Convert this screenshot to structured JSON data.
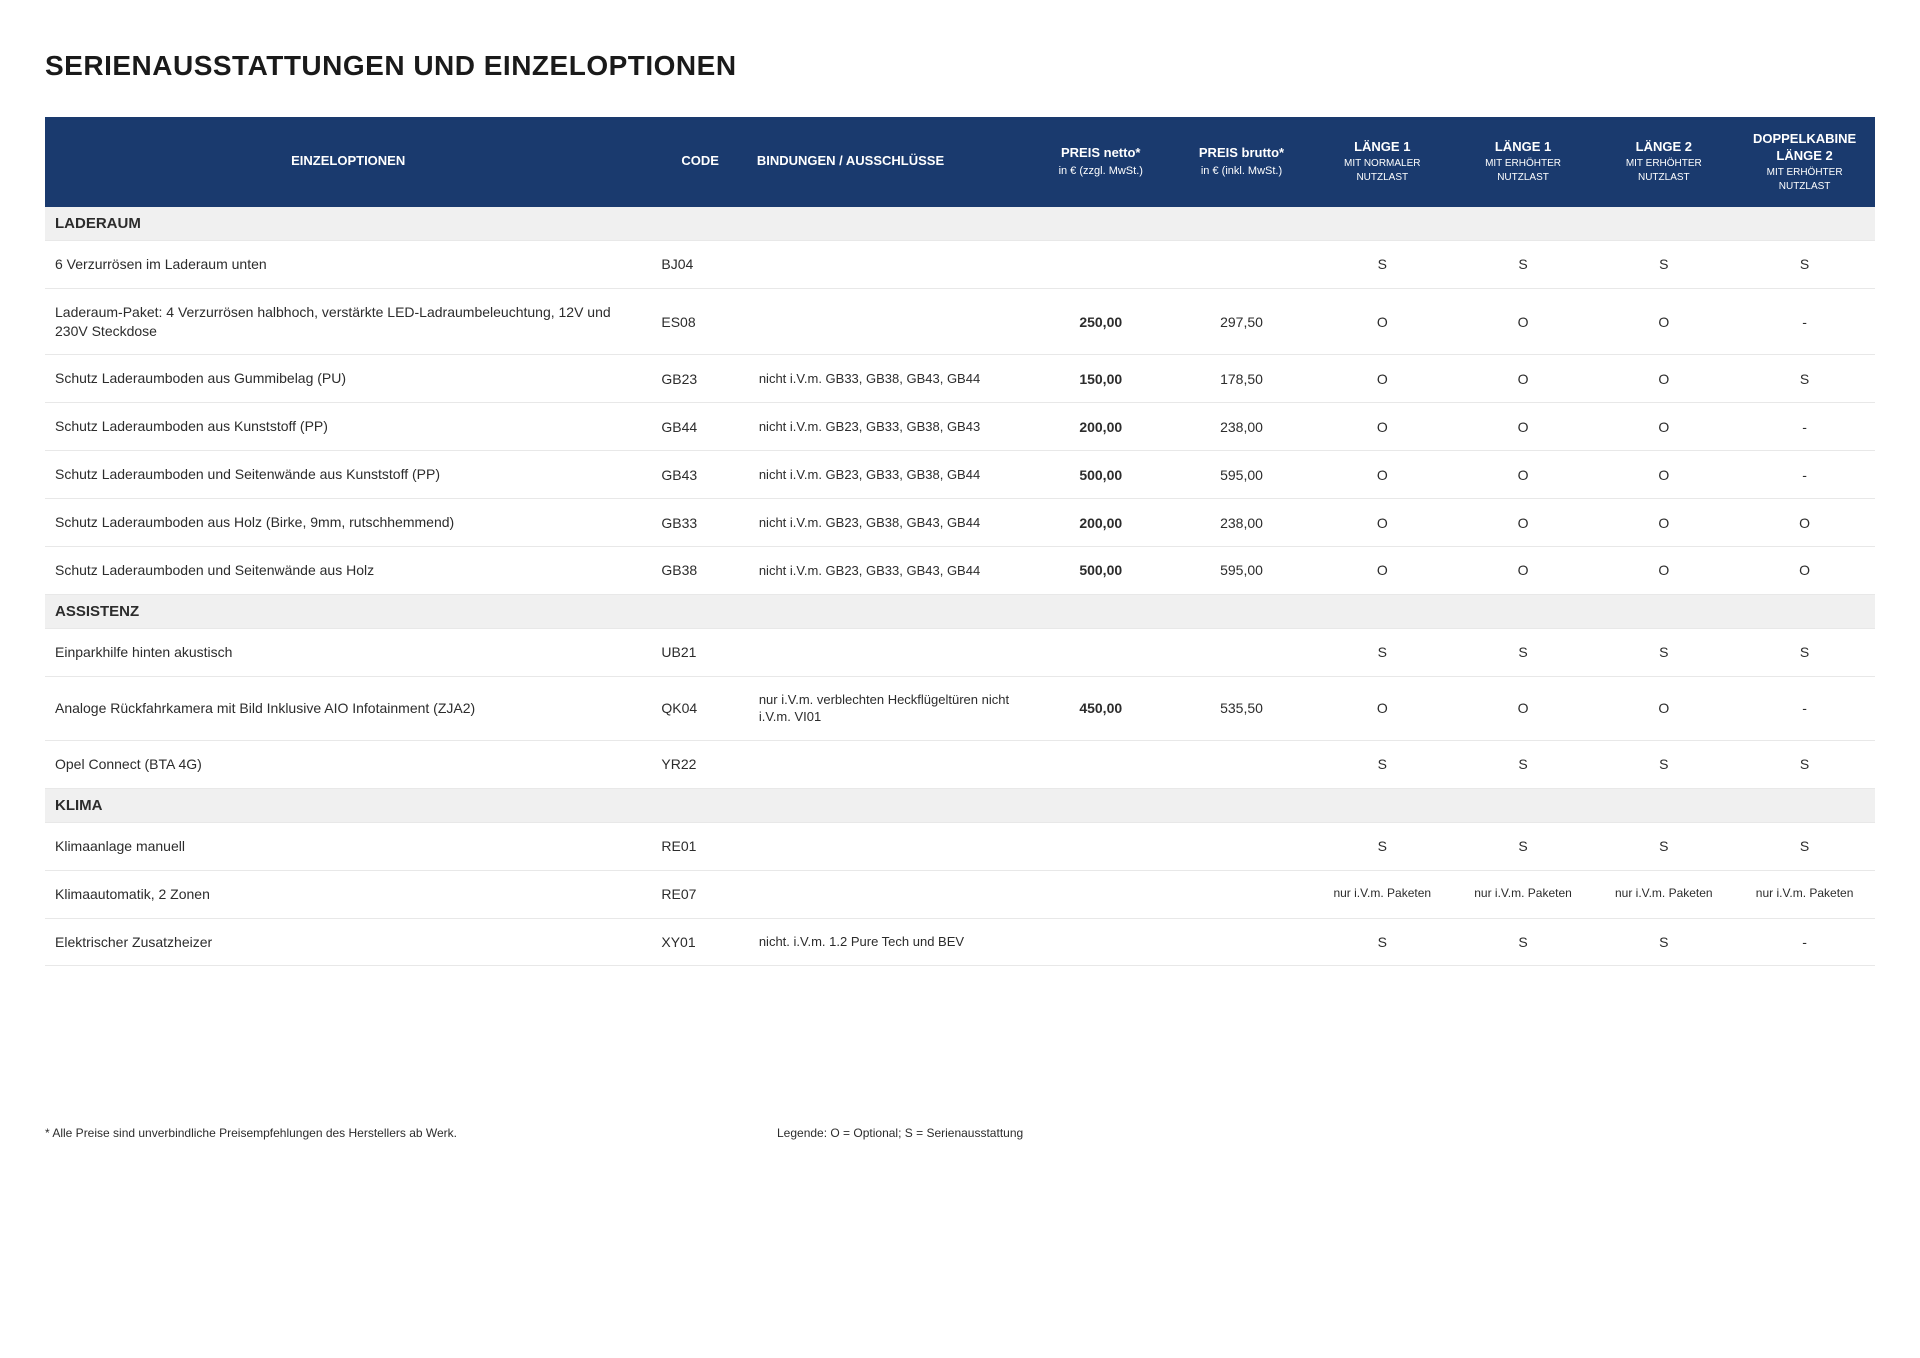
{
  "title": "SERIENAUSSTATTUNGEN UND EINZELOPTIONEN",
  "colors": {
    "header_bg": "#1a3a6e",
    "header_fg": "#ffffff",
    "section_bg": "#f0f0f0",
    "row_border": "#e8e8e8",
    "text": "#2c2c2c"
  },
  "columns": [
    {
      "key": "name",
      "label": "EINZELOPTIONEN",
      "sub": "",
      "sub2": ""
    },
    {
      "key": "code",
      "label": "CODE",
      "sub": "",
      "sub2": ""
    },
    {
      "key": "bind",
      "label": "BINDUNGEN / AUSSCHLÜSSE",
      "sub": "",
      "sub2": ""
    },
    {
      "key": "netto",
      "label": "PREIS netto*",
      "sub": "in € (zzgl. MwSt.)",
      "sub2": ""
    },
    {
      "key": "brutto",
      "label": "PREIS brutto*",
      "sub": "in € (inkl. MwSt.)",
      "sub2": ""
    },
    {
      "key": "v1",
      "label": "LÄNGE 1",
      "sub": "MIT NORMALER",
      "sub2": "NUTZLAST"
    },
    {
      "key": "v2",
      "label": "LÄNGE 1",
      "sub": "MIT ERHÖHTER",
      "sub2": "NUTZLAST"
    },
    {
      "key": "v3",
      "label": "LÄNGE 2",
      "sub": "MIT ERHÖHTER",
      "sub2": "NUTZLAST"
    },
    {
      "key": "v4",
      "label": "DOPPELKABINE LÄNGE 2",
      "sub": "MIT ERHÖHTER",
      "sub2": "NUTZLAST"
    }
  ],
  "sections": [
    {
      "title": "LADERAUM",
      "rows": [
        {
          "name": "6 Verzurrösen im Laderaum unten",
          "code": "BJ04",
          "bind": "",
          "netto": "",
          "brutto": "",
          "v1": "S",
          "v2": "S",
          "v3": "S",
          "v4": "S"
        },
        {
          "name": "Laderaum-Paket: 4 Verzurrösen halbhoch, verstärkte LED-Ladraumbeleuchtung, 12V und 230V Steckdose",
          "code": "ES08",
          "bind": "",
          "netto": "250,00",
          "brutto": "297,50",
          "v1": "O",
          "v2": "O",
          "v3": "O",
          "v4": "-"
        },
        {
          "name": "Schutz Laderaumboden aus Gummibelag (PU)",
          "code": "GB23",
          "bind": "nicht i.V.m. GB33, GB38, GB43, GB44",
          "netto": "150,00",
          "brutto": "178,50",
          "v1": "O",
          "v2": "O",
          "v3": "O",
          "v4": "S"
        },
        {
          "name": "Schutz Laderaumboden aus Kunststoff (PP)",
          "code": "GB44",
          "bind": "nicht i.V.m. GB23, GB33, GB38, GB43",
          "netto": "200,00",
          "brutto": "238,00",
          "v1": "O",
          "v2": "O",
          "v3": "O",
          "v4": "-"
        },
        {
          "name": "Schutz Laderaumboden und Seitenwände aus Kunststoff (PP)",
          "code": "GB43",
          "bind": "nicht i.V.m. GB23, GB33, GB38, GB44",
          "netto": "500,00",
          "brutto": "595,00",
          "v1": "O",
          "v2": "O",
          "v3": "O",
          "v4": "-"
        },
        {
          "name": "Schutz Laderaumboden aus Holz (Birke, 9mm, rutschhemmend)",
          "code": "GB33",
          "bind": "nicht i.V.m. GB23, GB38, GB43, GB44",
          "netto": "200,00",
          "brutto": "238,00",
          "v1": "O",
          "v2": "O",
          "v3": "O",
          "v4": "O"
        },
        {
          "name": "Schutz Laderaumboden und Seitenwände aus Holz",
          "code": "GB38",
          "bind": "nicht i.V.m. GB23, GB33, GB43, GB44",
          "netto": "500,00",
          "brutto": "595,00",
          "v1": "O",
          "v2": "O",
          "v3": "O",
          "v4": "O"
        }
      ]
    },
    {
      "title": "ASSISTENZ",
      "rows": [
        {
          "name": "Einparkhilfe hinten akustisch",
          "code": "UB21",
          "bind": "",
          "netto": "",
          "brutto": "",
          "v1": "S",
          "v2": "S",
          "v3": "S",
          "v4": "S"
        },
        {
          "name": "Analoge Rückfahrkamera mit Bild Inklusive AIO Infotainment (ZJA2)",
          "code": "QK04",
          "bind": "nur i.V.m. verblechten Heckflügeltüren nicht i.V.m. VI01",
          "netto": "450,00",
          "brutto": "535,50",
          "v1": "O",
          "v2": "O",
          "v3": "O",
          "v4": "-"
        },
        {
          "name": "Opel Connect (BTA 4G)",
          "code": "YR22",
          "bind": "",
          "netto": "",
          "brutto": "",
          "v1": "S",
          "v2": "S",
          "v3": "S",
          "v4": "S"
        }
      ]
    },
    {
      "title": "KLIMA",
      "rows": [
        {
          "name": "Klimaanlage manuell",
          "code": "RE01",
          "bind": "",
          "netto": "",
          "brutto": "",
          "v1": "S",
          "v2": "S",
          "v3": "S",
          "v4": "S"
        },
        {
          "name": "Klimaautomatik, 2 Zonen",
          "code": "RE07",
          "bind": "",
          "netto": "",
          "brutto": "",
          "v1": "nur i.V.m. Paketen",
          "v2": "nur i.V.m. Paketen",
          "v3": "nur i.V.m. Paketen",
          "v4": "nur i.V.m. Paketen",
          "small": true
        },
        {
          "name": "Elektrischer Zusatzheizer",
          "code": "XY01",
          "bind": "nicht. i.V.m. 1.2 Pure Tech und BEV",
          "netto": "",
          "brutto": "",
          "v1": "S",
          "v2": "S",
          "v3": "S",
          "v4": "-"
        }
      ]
    }
  ],
  "footer": {
    "note": "* Alle Preise sind unverbindliche Preisempfehlungen des Herstellers ab Werk.",
    "legend": "Legende: O = Optional; S = Serienausstattung"
  }
}
